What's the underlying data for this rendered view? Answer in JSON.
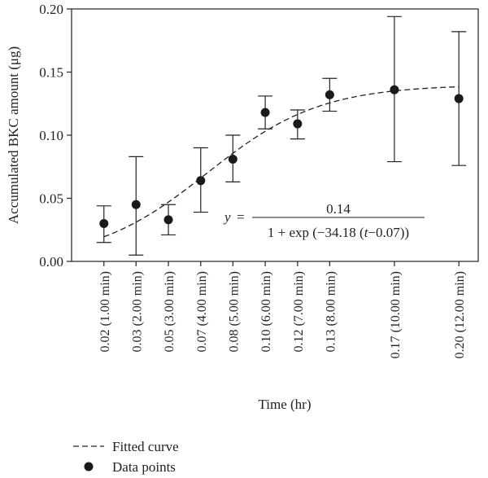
{
  "chart_data": {
    "type": "scatter",
    "xlabel": "Time (hr)",
    "ylabel": "Accumulated BKC amount (μg)",
    "ylim": [
      0,
      0.2
    ],
    "yticks": [
      0.0,
      0.05,
      0.1,
      0.15,
      0.2
    ],
    "ytick_labels": [
      "0.00",
      "0.05",
      "0.10",
      "0.15",
      "0.20"
    ],
    "xlim": [
      0.0,
      0.21
    ],
    "x_tick_labels": [
      "0.02 (1.00 min)",
      "0.03 (2.00 min)",
      "0.05 (3.00 min)",
      "0.07 (4.00 min)",
      "0.08 (5.00 min)",
      "0.10 (6.00 min)",
      "0.12 (7.00 min)",
      "0.13 (8.00 min)",
      "0.17 (10.00 min)",
      "0.20 (12.00 min)"
    ],
    "x": [
      0.0167,
      0.0333,
      0.05,
      0.0667,
      0.0833,
      0.1,
      0.1167,
      0.1333,
      0.1667,
      0.2
    ],
    "series": [
      {
        "name": "Data points",
        "y": [
          0.03,
          0.045,
          0.033,
          0.064,
          0.081,
          0.118,
          0.109,
          0.132,
          0.136,
          0.129
        ],
        "err_lo": [
          0.015,
          0.005,
          0.021,
          0.039,
          0.063,
          0.105,
          0.097,
          0.119,
          0.079,
          0.076
        ],
        "err_hi": [
          0.044,
          0.083,
          0.045,
          0.09,
          0.1,
          0.131,
          0.12,
          0.145,
          0.194,
          0.182
        ]
      },
      {
        "name": "Fitted curve",
        "model": "logistic",
        "params": {
          "a": 0.14,
          "k": 34.18,
          "t0": 0.07
        }
      }
    ],
    "equation": {
      "lhs": "y",
      "eq": "=",
      "numerator": "0.14",
      "denominator_prefix": "1 + exp (−34.18 (",
      "denominator_var": "t",
      "denominator_suffix": "−0.07))"
    },
    "legend": {
      "placement": "bottom-left",
      "entries": [
        "Fitted curve",
        "Data points"
      ]
    },
    "grid": false
  }
}
